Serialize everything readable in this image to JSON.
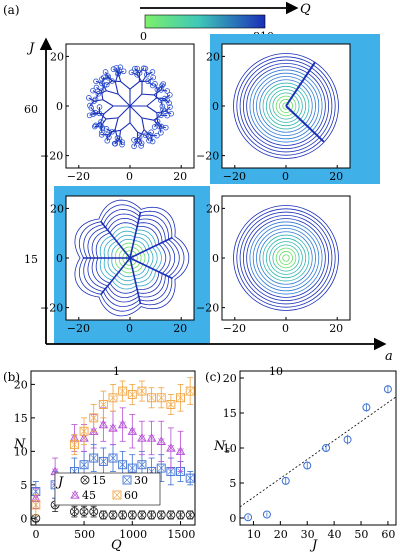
{
  "colors": {
    "highlight": "#3fb0e8",
    "dark_blue": "#1a2fb8",
    "orange": "#f2a23c",
    "violet": "#b74fd6",
    "blue_marker": "#3b6fd4",
    "black": "#222222",
    "grid_line": "#333333"
  },
  "figure": {
    "panel_a": {
      "label": "(a)",
      "colorbar": {
        "label": "Q",
        "min_label": "0",
        "max_label": "810",
        "range": [
          0,
          810
        ]
      },
      "outer_axes": {
        "y_label": "J",
        "x_label": "a",
        "y_ticks": [
          "60",
          "15"
        ],
        "x_ticks": [
          "1",
          "10"
        ]
      },
      "subplot_range": [
        -25,
        25
      ],
      "subplot_ticks": [
        "−20",
        "0",
        "20"
      ],
      "subplots": [
        {
          "name": "a1-J60",
          "a": 1,
          "J": 60,
          "type": "branched-network",
          "highlighted": false
        },
        {
          "name": "a10-J60",
          "a": 10,
          "J": 60,
          "type": "concentric-circles-with-wall",
          "highlighted": true
        },
        {
          "name": "a1-J15",
          "a": 1,
          "J": 15,
          "type": "polygonal-cells",
          "highlighted": true
        },
        {
          "name": "a10-J15",
          "a": 10,
          "J": 15,
          "type": "concentric-circles",
          "highlighted": false
        }
      ]
    },
    "panel_b": {
      "label": "(b)",
      "chart_data": {
        "type": "scatter",
        "xlabel": "Q",
        "ylabel": "N",
        "xlim": [
          -50,
          1650
        ],
        "ylim": [
          -1,
          22
        ],
        "xticks": [
          0,
          500,
          1000,
          1500
        ],
        "yticks": [
          0,
          5,
          10,
          15,
          20
        ],
        "legend_title": "J",
        "series": [
          {
            "name": "15",
            "marker": "circle-x",
            "color": "#222222",
            "x": [
              0,
              200,
              400,
              500,
              600,
              700,
              800,
              900,
              1000,
              1100,
              1200,
              1300,
              1400,
              1500,
              1600
            ],
            "y": [
              0,
              2,
              1,
              1,
              1,
              0.5,
              0.5,
              0.5,
              0.5,
              0.5,
              0.5,
              0.5,
              0.5,
              0.5,
              0.5
            ],
            "err": [
              0.5,
              1,
              0.8,
              0.8,
              0.8,
              0.6,
              0.6,
              0.6,
              0.6,
              0.6,
              0.6,
              0.6,
              0.6,
              0.6,
              0.6
            ]
          },
          {
            "name": "30",
            "marker": "square-x",
            "color": "#3b6fd4",
            "x": [
              0,
              200,
              400,
              500,
              600,
              700,
              800,
              900,
              1000,
              1100,
              1200,
              1300,
              1400,
              1500,
              1600
            ],
            "y": [
              4,
              5,
              7,
              8,
              9,
              8.5,
              9,
              8,
              7.5,
              8,
              7,
              7.5,
              7,
              7,
              6
            ],
            "err": [
              1.5,
              2,
              2,
              2,
              2,
              2,
              2,
              2,
              2,
              2,
              2,
              2,
              2,
              1.5,
              1
            ]
          },
          {
            "name": "45",
            "marker": "triangle-x",
            "color": "#b74fd6",
            "x": [
              0,
              200,
              400,
              500,
              600,
              700,
              800,
              900,
              1000,
              1100,
              1200,
              1300,
              1400,
              1500
            ],
            "y": [
              3,
              7,
              12,
              12,
              13,
              14,
              13.5,
              14,
              13,
              12,
              12,
              11.5,
              10.5,
              10
            ],
            "err": [
              1.5,
              2,
              2,
              2,
              2.5,
              2.5,
              2.5,
              2.5,
              2.5,
              2.5,
              2.5,
              3,
              3,
              3
            ]
          },
          {
            "name": "60",
            "marker": "square-x",
            "color": "#f2a23c",
            "x": [
              0,
              400,
              500,
              600,
              700,
              800,
              900,
              1000,
              1100,
              1200,
              1300,
              1400,
              1500,
              1600
            ],
            "y": [
              2,
              11,
              13,
              15,
              17,
              18,
              19,
              18.5,
              19,
              18,
              18,
              17,
              18,
              19
            ],
            "err": [
              1.5,
              1.5,
              2,
              2,
              2,
              2,
              1.5,
              1.5,
              1.5,
              1.5,
              1.5,
              1.5,
              2,
              2
            ]
          }
        ]
      }
    },
    "panel_c": {
      "label": "(c)",
      "chart_data": {
        "type": "scatter",
        "xlabel": "J",
        "ylabel": "N_s",
        "ylabel_main": "N",
        "ylabel_sub": "s",
        "xlim": [
          5,
          63
        ],
        "ylim": [
          -1,
          21
        ],
        "xticks": [
          10,
          20,
          30,
          40,
          50,
          60
        ],
        "yticks": [
          0,
          5,
          10,
          15,
          20
        ],
        "points": {
          "x": [
            8,
            15,
            22,
            30,
            37,
            45,
            52,
            60
          ],
          "y": [
            0.1,
            0.5,
            5.3,
            7.5,
            10,
            11.2,
            15.8,
            18.4
          ],
          "err": [
            0.3,
            0.3,
            0.5,
            0.5,
            0.5,
            0.7,
            0.6,
            0.6
          ]
        },
        "fit_line": {
          "x": [
            5,
            63
          ],
          "y": [
            1.6,
            17.3
          ]
        }
      }
    }
  }
}
